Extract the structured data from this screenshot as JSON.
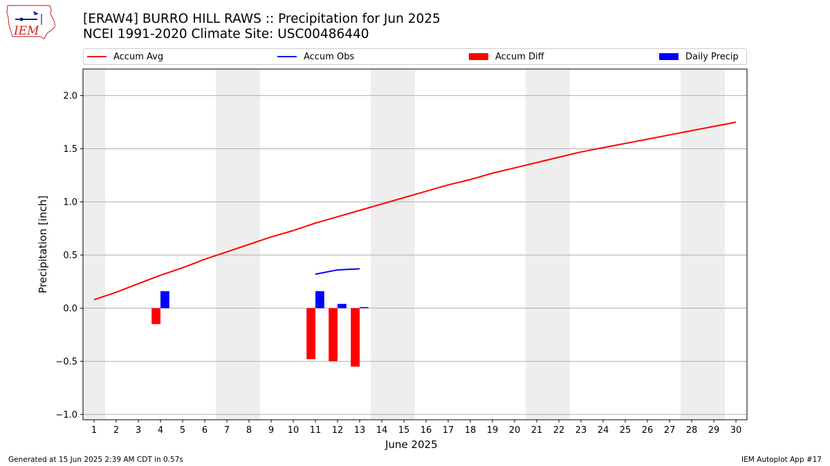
{
  "header": {
    "title_line1": "[ERAW4] BURRO HILL RAWS :: Precipitation for Jun 2025",
    "title_line2": "NCEI 1991-2020 Climate Site: USC00486440",
    "logo_text": "IEM"
  },
  "legend": {
    "items": [
      {
        "label": "Accum Avg",
        "kind": "line",
        "color": "#ff0000"
      },
      {
        "label": "Accum Obs",
        "kind": "line",
        "color": "#0000ff"
      },
      {
        "label": "Accum Diff",
        "kind": "patch",
        "color": "#ff0000"
      },
      {
        "label": "Daily Precip",
        "kind": "patch",
        "color": "#0000ff"
      }
    ]
  },
  "footer": {
    "left": "Generated at 15 Jun 2025 2:39 AM CDT in 0.57s",
    "right": "IEM Autoplot App #17"
  },
  "chart_data": {
    "type": "line",
    "xlabel": "June 2025",
    "ylabel": "Precipitation [inch]",
    "xlim": [
      0.5,
      30.5
    ],
    "ylim": [
      -1.05,
      2.25
    ],
    "yticks": [
      -1.0,
      -0.5,
      0.0,
      0.5,
      1.0,
      1.5,
      2.0
    ],
    "ytick_labels": [
      "−1.0",
      "−0.5",
      "0.0",
      "0.5",
      "1.0",
      "1.5",
      "2.0"
    ],
    "xticks": [
      1,
      2,
      3,
      4,
      5,
      6,
      7,
      8,
      9,
      10,
      11,
      12,
      13,
      14,
      15,
      16,
      17,
      18,
      19,
      20,
      21,
      22,
      23,
      24,
      25,
      26,
      27,
      28,
      29,
      30
    ],
    "grid": "horizontal",
    "weekend_shading": [
      [
        0.5,
        1.5
      ],
      [
        6.5,
        8.5
      ],
      [
        13.5,
        15.5
      ],
      [
        20.5,
        22.5
      ],
      [
        27.5,
        29.5
      ]
    ],
    "shade_color": "#eeeeee",
    "series": [
      {
        "name": "Accum Avg",
        "kind": "line",
        "color": "#ff0000",
        "x": [
          1,
          2,
          3,
          4,
          5,
          6,
          7,
          8,
          9,
          10,
          11,
          12,
          13,
          14,
          15,
          16,
          17,
          18,
          19,
          20,
          21,
          22,
          23,
          24,
          25,
          26,
          27,
          28,
          29,
          30
        ],
        "values": [
          0.08,
          0.15,
          0.23,
          0.31,
          0.38,
          0.46,
          0.53,
          0.6,
          0.67,
          0.73,
          0.8,
          0.86,
          0.92,
          0.98,
          1.04,
          1.1,
          1.16,
          1.21,
          1.27,
          1.32,
          1.37,
          1.42,
          1.47,
          1.51,
          1.55,
          1.59,
          1.63,
          1.67,
          1.71,
          1.75
        ]
      },
      {
        "name": "Accum Obs",
        "kind": "line",
        "color": "#0000ff",
        "x": [
          11,
          12,
          13
        ],
        "values": [
          0.32,
          0.36,
          0.37
        ]
      },
      {
        "name": "Accum Diff",
        "kind": "bar",
        "color": "#ff0000",
        "x": [
          4,
          11,
          12,
          13
        ],
        "values": [
          -0.15,
          -0.48,
          -0.5,
          -0.55
        ]
      },
      {
        "name": "Daily Precip",
        "kind": "bar",
        "color": "#0000ff",
        "x": [
          4,
          11,
          12,
          13
        ],
        "values": [
          0.16,
          0.16,
          0.04,
          0.01
        ]
      }
    ]
  }
}
